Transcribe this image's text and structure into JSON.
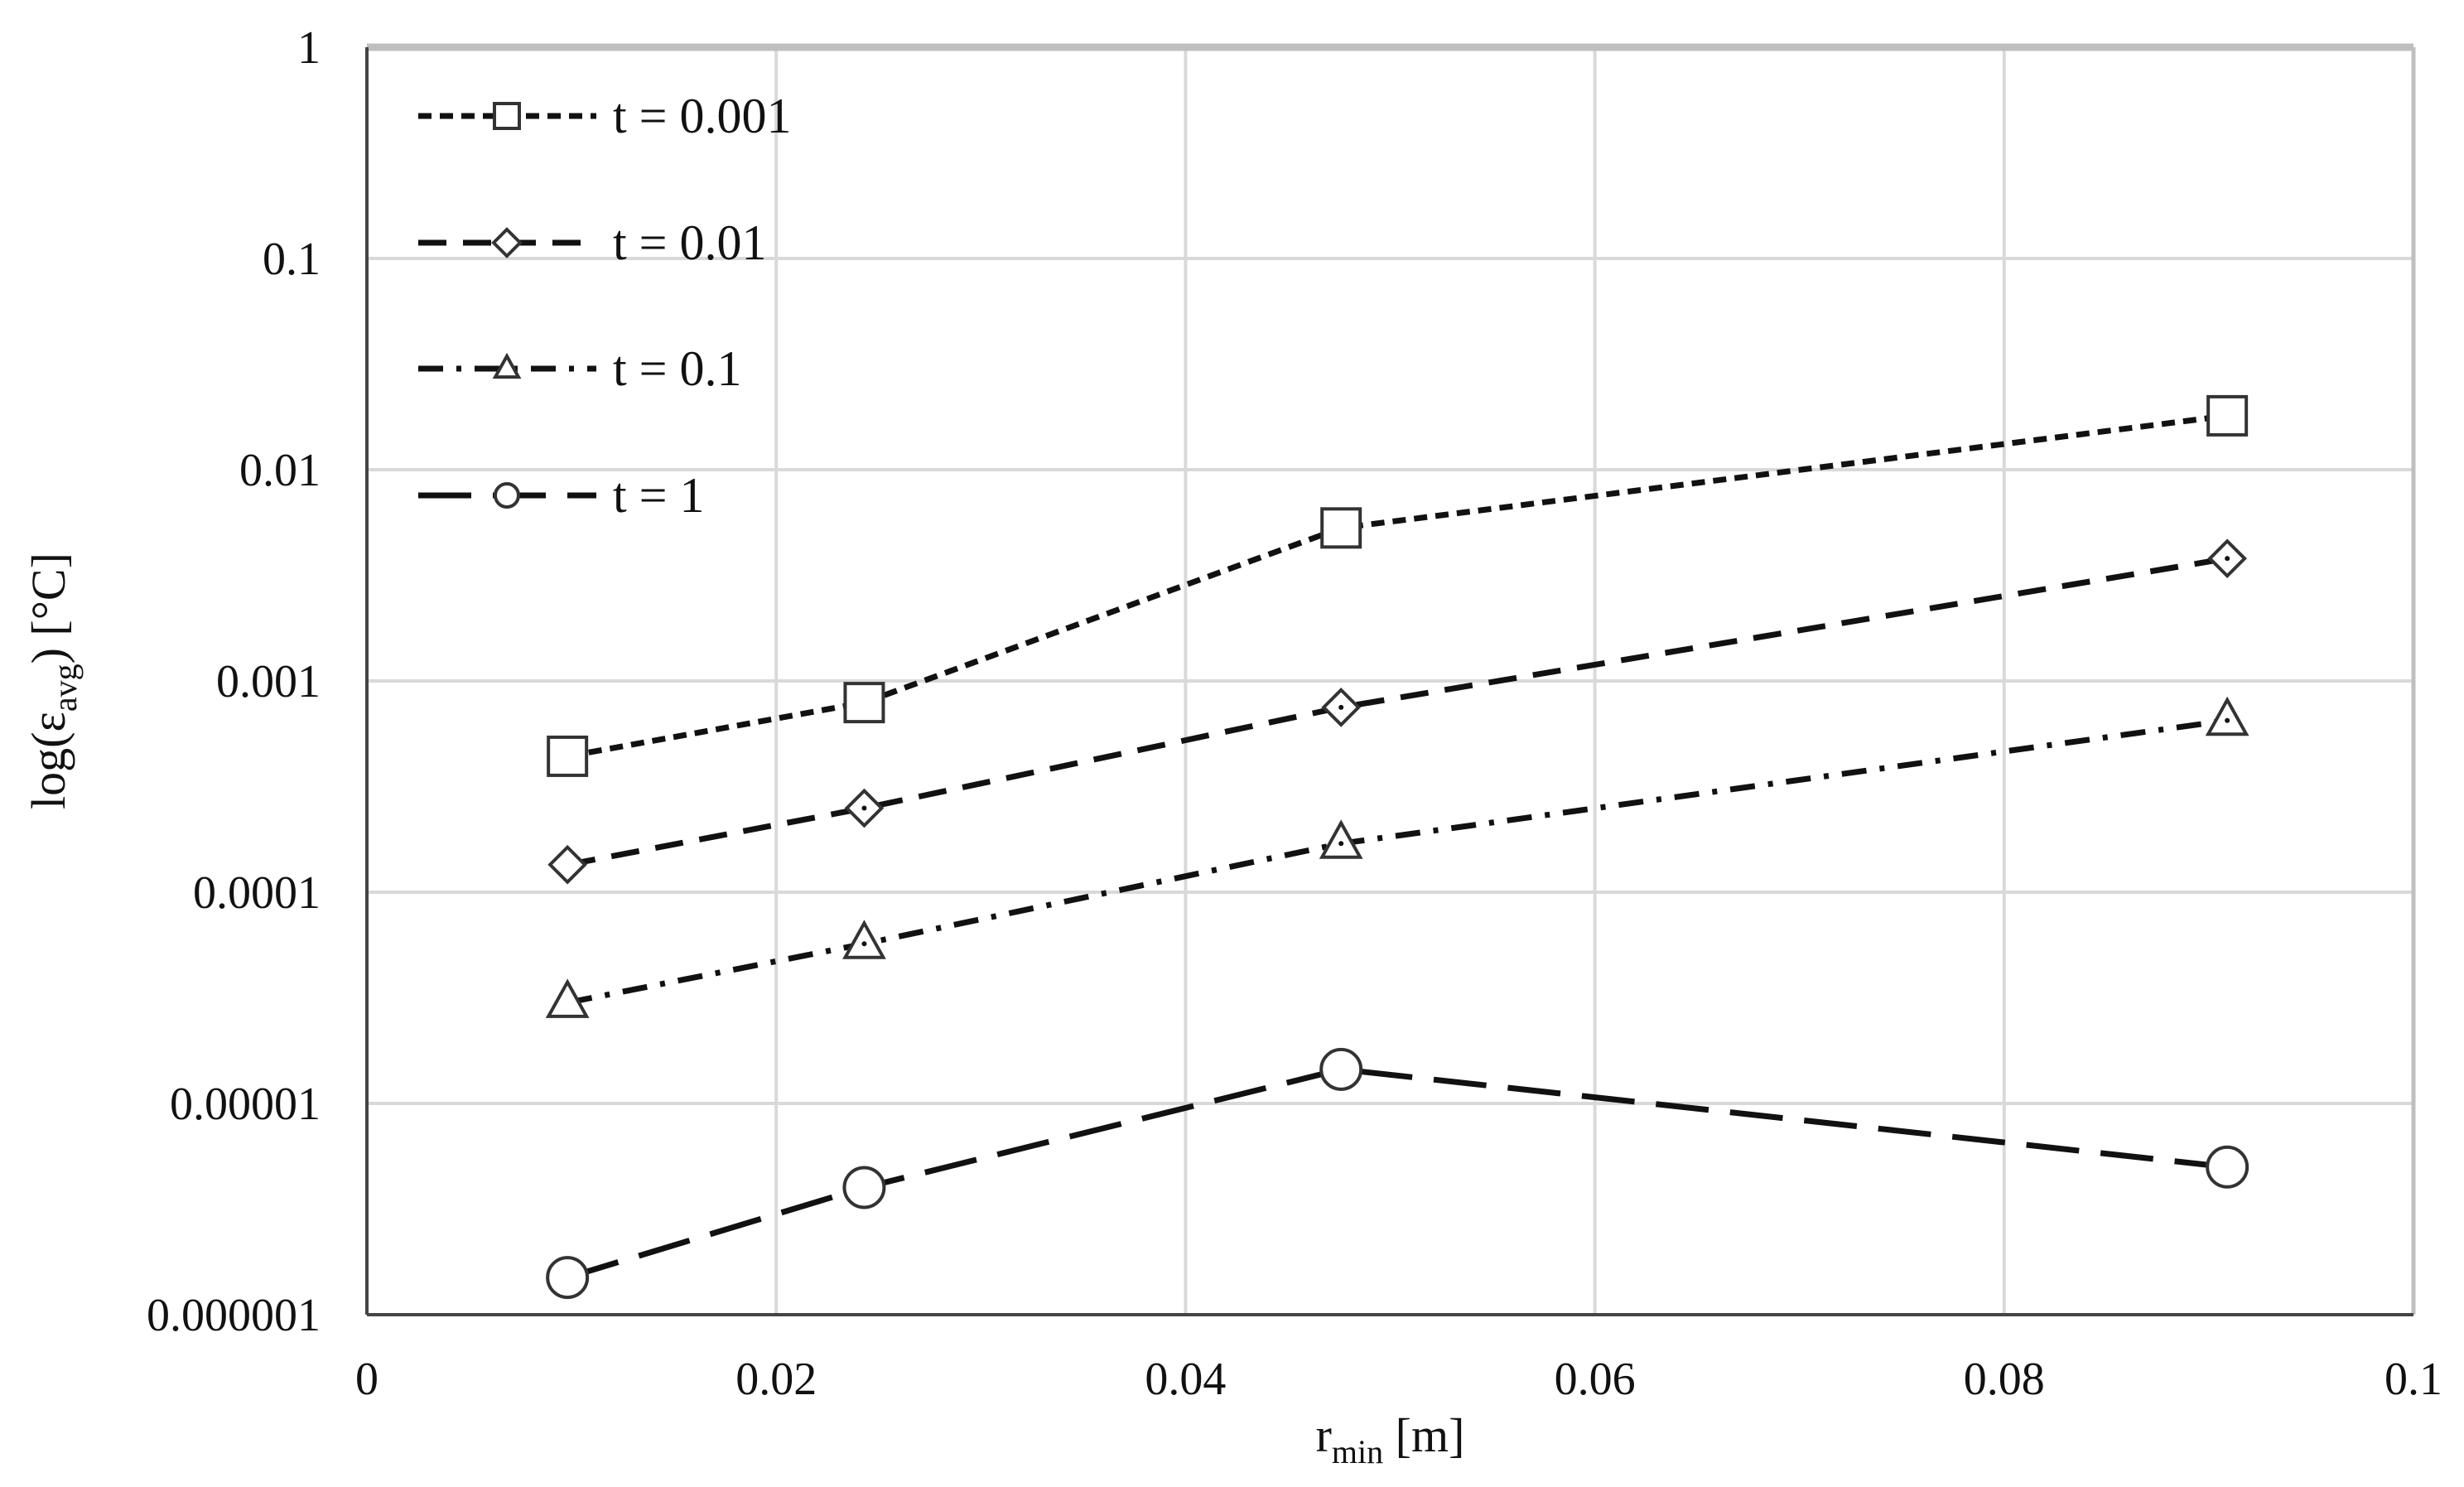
{
  "chart_data": {
    "type": "line",
    "xlabel": {
      "main": "r",
      "sub": "min",
      "unit": " [m]"
    },
    "ylabel": {
      "prefix": "log(ε",
      "sub": "avg",
      "suffix": ") [°C]"
    },
    "xlim": [
      0,
      0.1
    ],
    "ylim": [
      1e-06,
      1
    ],
    "y_scale": "log",
    "grid": true,
    "legend_position": "top-left",
    "x_ticks": [
      "0",
      "0.02",
      "0.04",
      "0.06",
      "0.08",
      "0.1"
    ],
    "y_ticks": [
      "0.000001",
      "0.00001",
      "0.0001",
      "0.001",
      "0.01",
      "0.1",
      "1"
    ],
    "x": [
      0.0098,
      0.0243,
      0.0476,
      0.0909
    ],
    "series": [
      {
        "name": "t = 0.001",
        "marker": "square",
        "dash": "dotted",
        "values": [
          0.00044,
          0.00079,
          0.0053,
          0.018
        ]
      },
      {
        "name": "t = 0.01",
        "marker": "diamond",
        "dash": "dashed",
        "values": [
          0.000135,
          0.00025,
          0.00075,
          0.0038
        ]
      },
      {
        "name": "t = 0.1",
        "marker": "triangle",
        "dash": "dash-dot",
        "values": [
          3e-05,
          5.7e-05,
          0.00017,
          0.00065
        ]
      },
      {
        "name": "t = 1",
        "marker": "circle",
        "dash": "long-dash",
        "values": [
          1.5e-06,
          4e-06,
          1.45e-05,
          5e-06
        ]
      }
    ]
  }
}
